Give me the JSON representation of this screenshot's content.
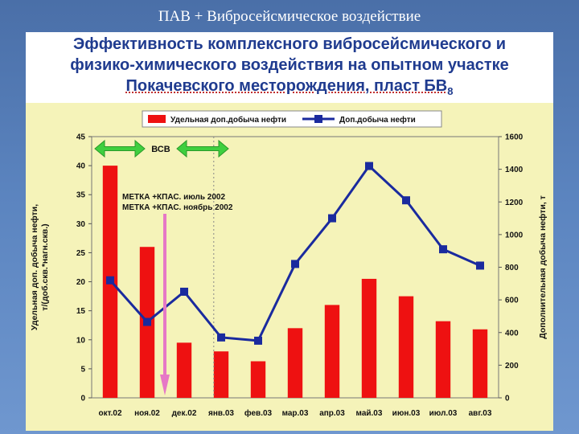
{
  "slide": {
    "title": "ПАВ + Вибросейсмическое воздействие",
    "heading_lines": [
      "Эффективность комплексного вибросейсмического и",
      "физико-химического воздействия на опытном участке",
      "Покачевского месторождения, пласт БВ",
      "8"
    ]
  },
  "colors": {
    "background": "#5b84bf",
    "heading": "#1f3b8f",
    "chart_bg": "#f5f3b9",
    "bar": "#ee1111",
    "line": "#1a2a9e",
    "arrow_green": "#3fcf3f",
    "arrow_pink": "#e678c6"
  },
  "chart_data": {
    "type": "bar",
    "categories": [
      "окт.02",
      "ноя.02",
      "дек.02",
      "янв.03",
      "фев.03",
      "мар.03",
      "апр.03",
      "май.03",
      "июн.03",
      "июл.03",
      "авг.03"
    ],
    "series": [
      {
        "name": "Удельная доп.добыча нефти",
        "type": "bar",
        "axis": "left",
        "values": [
          40,
          26,
          9.5,
          8,
          6.3,
          12,
          16,
          20.5,
          17.5,
          13.2,
          11.8
        ]
      },
      {
        "name": "Доп.добыча нефти",
        "type": "line",
        "axis": "right",
        "values": [
          720,
          465,
          650,
          370,
          350,
          820,
          1100,
          1420,
          1210,
          910,
          810
        ]
      }
    ],
    "ylabel": "Удельная доп. добыча нефти, т/(доб.скв.*нагн.скв.)",
    "y2label": "Дополнительная добыча нефти, т",
    "ylim": [
      0,
      45
    ],
    "y2lim": [
      0,
      1600
    ],
    "yticks": [
      "0",
      "5",
      "10",
      "15",
      "20",
      "25",
      "30",
      "35",
      "40",
      "45"
    ],
    "y2ticks": [
      "0",
      "200",
      "400",
      "600",
      "800",
      "1000",
      "1200",
      "1400",
      "1600"
    ],
    "legend": "top",
    "annotations": {
      "arrow_label": "ВСВ",
      "note_line1": "МЕТКА +КПАС. июль 2002",
      "note_line2": "МЕТКА +КПАС. ноябрь 2002"
    }
  }
}
